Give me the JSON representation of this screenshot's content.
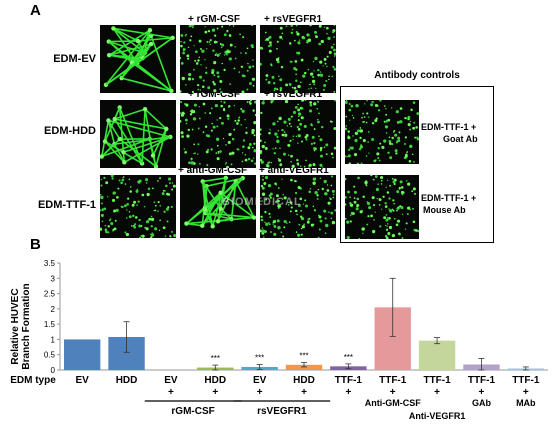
{
  "panel_a": {
    "letter": "A",
    "rows": [
      {
        "label": "EDM-EV",
        "cols": [
          "",
          "+ rGM-CSF",
          "+ rsVEGFR1"
        ]
      },
      {
        "label": "EDM-HDD",
        "cols": [
          "",
          "+ rGM-CSF",
          "+ rsVEGFR1"
        ]
      },
      {
        "label": "EDM-TTF-1",
        "cols": [
          "",
          "+ anti-GM-CSF",
          "+ anti-VEGFR1"
        ]
      }
    ],
    "controls": {
      "title": "Antibody controls",
      "items": [
        {
          "line1": "EDM-TTF-1 +",
          "line2": "Goat Ab"
        },
        {
          "line1": "EDM-TTF-1 +",
          "line2": "Mouse Ab"
        }
      ]
    },
    "watermark": "BIOMEDICAL"
  },
  "panel_b": {
    "letter": "B"
  },
  "chart_data": {
    "type": "bar",
    "ylabel_lines": [
      "Relative HUVEC",
      "Branch Formation"
    ],
    "ylim": [
      0,
      3.5
    ],
    "yticks": [
      "0",
      "0.5",
      "1",
      "1.5",
      "2",
      "2.5",
      "3",
      "3.5"
    ],
    "xaxis_title": "EDM type",
    "categories": [
      "EV",
      "HDD",
      "EV",
      "HDD",
      "EV",
      "HDD",
      "TTF-1",
      "TTF-1",
      "TTF-1",
      "TTF-1",
      "TTF-1"
    ],
    "values": [
      1.0,
      1.08,
      0.0,
      0.08,
      0.1,
      0.17,
      0.12,
      2.05,
      0.96,
      0.18,
      0.05
    ],
    "errors": [
      0.0,
      0.5,
      0.0,
      0.08,
      0.08,
      0.07,
      0.08,
      0.95,
      0.1,
      0.2,
      0.05
    ],
    "colors": [
      "#4f81bd",
      "#4f81bd",
      "#4f81bd",
      "#9bbb59",
      "#4bacc6",
      "#f79646",
      "#8064a2",
      "#e6999b",
      "#c3d69b",
      "#b3a2c7",
      "#93cddd"
    ],
    "significance": [
      "",
      "",
      "",
      "***",
      "***",
      "***",
      "***",
      "",
      "",
      "",
      ""
    ],
    "plus_signs": [
      "",
      "",
      "+",
      "+",
      "+",
      "+",
      "+",
      "+",
      "+",
      "+",
      "+"
    ],
    "sublabels": [
      "",
      "",
      "",
      "",
      "",
      "",
      "",
      "Anti-GM-CSF",
      "",
      "GAb",
      "MAb"
    ],
    "groups": [
      {
        "label": "rGM-CSF",
        "from": 2,
        "to": 3
      },
      {
        "label": "rsVEGFR1",
        "from": 4,
        "to": 5
      },
      {
        "label": "Anti-VEGFR1",
        "from": 8,
        "to": 8
      }
    ],
    "grid": false,
    "legend": "none"
  }
}
